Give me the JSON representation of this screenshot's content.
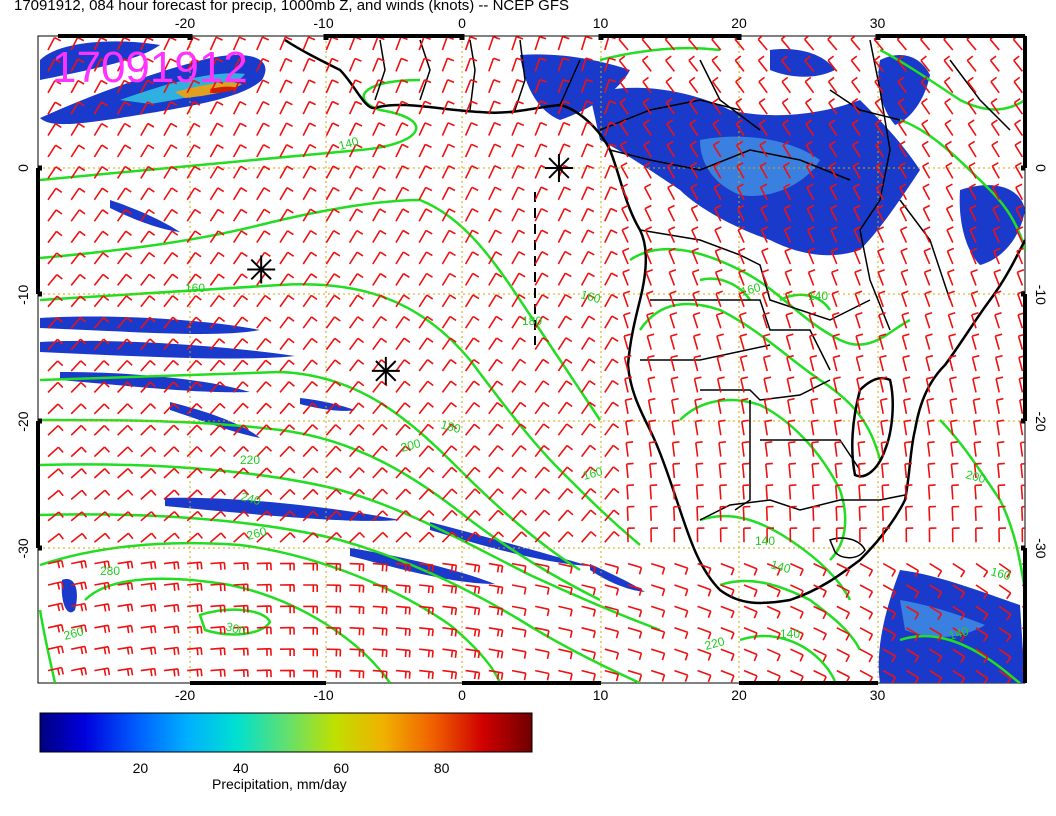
{
  "title": "17091912, 084 hour forecast for precip, 1000mb Z, and winds (knots) -- NCEP GFS",
  "stamp": "17091912",
  "colors": {
    "stamp": "#ff33ff",
    "contour": "#22dd22",
    "barb": "#ee1111",
    "grid": "#ccaa00",
    "coast": "#000000"
  },
  "axes": {
    "lon_range": [
      -31,
      41
    ],
    "lat_range": [
      -41,
      10
    ],
    "lon_ticks": [
      "-20",
      "-10",
      "0",
      "10",
      "20",
      "30"
    ],
    "lon_tick_values": [
      -20,
      -10,
      0,
      10,
      20,
      30
    ],
    "lat_ticks": [
      "0",
      "-10",
      "-20",
      "-30"
    ],
    "lat_tick_values": [
      0,
      -10,
      -20,
      -30
    ],
    "grid": true
  },
  "contour_labels": [
    "140",
    "160",
    "180",
    "200",
    "220",
    "240",
    "260",
    "280",
    "300",
    "260",
    "140",
    "140",
    "160",
    "180",
    "160",
    "160",
    "140",
    "200",
    "220",
    "140",
    "160",
    "140"
  ],
  "colorbar": {
    "title": "Precipitation, mm/day",
    "ticks": [
      "20",
      "40",
      "60",
      "80"
    ],
    "tick_values": [
      20,
      40,
      60,
      80
    ],
    "range": [
      0,
      98
    ],
    "colors": [
      "#000080",
      "#0000cc",
      "#0050ff",
      "#00a0ff",
      "#00e0e0",
      "#40e0a0",
      "#90e040",
      "#d0d000",
      "#f0a000",
      "#f05000",
      "#d00000",
      "#800000"
    ]
  },
  "markers": {
    "symbol": "asterisk",
    "positions_lonlat": [
      [
        -14.5,
        -8
      ],
      [
        -5.5,
        -16
      ],
      [
        7,
        0
      ]
    ]
  }
}
